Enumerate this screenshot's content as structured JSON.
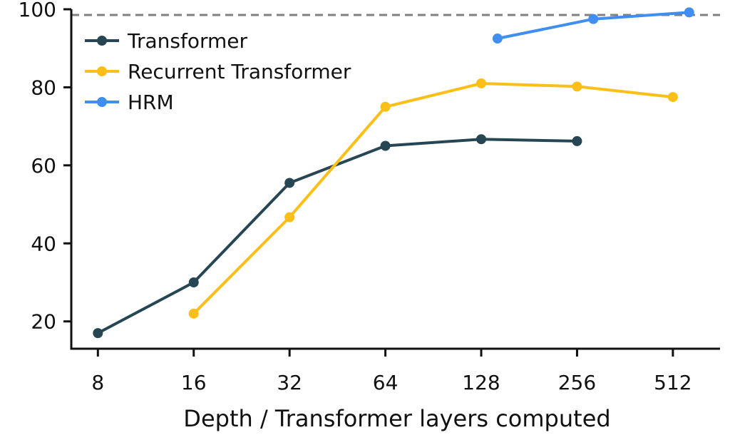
{
  "chart_data": {
    "type": "line",
    "xscale": "log2",
    "x_ticks": [
      8,
      16,
      32,
      64,
      128,
      256,
      512
    ],
    "x_tick_labels": [
      "8",
      "16",
      "32",
      "64",
      "128",
      "256",
      "512"
    ],
    "y_ticks": [
      20,
      40,
      60,
      80,
      100
    ],
    "y_tick_labels": [
      "20",
      "40",
      "60",
      "80",
      "100"
    ],
    "xlim": [
      6.6,
      720
    ],
    "ylim": [
      13,
      100
    ],
    "xlabel": "Depth / Transformer layers computed",
    "ylabel": "",
    "reference_line": {
      "y": 100,
      "style": "dashed",
      "color": "#808080"
    },
    "legend_position": "top-left",
    "series": [
      {
        "name": "Transformer",
        "color": "#264653",
        "points": [
          [
            8,
            17
          ],
          [
            16,
            30
          ],
          [
            32,
            55.5
          ],
          [
            64,
            65
          ],
          [
            128,
            66.7
          ],
          [
            256,
            66.2
          ]
        ]
      },
      {
        "name": "Recurrent Transformer",
        "color": "#fbbf17",
        "points": [
          [
            16,
            22
          ],
          [
            32,
            46.7
          ],
          [
            64,
            75
          ],
          [
            128,
            81
          ],
          [
            256,
            80.2
          ],
          [
            512,
            77.5
          ]
        ]
      },
      {
        "name": "HRM",
        "color": "#3f8ef0",
        "points": [
          [
            144,
            92.5
          ],
          [
            288,
            97.5
          ],
          [
            576,
            99.2
          ]
        ]
      }
    ]
  }
}
